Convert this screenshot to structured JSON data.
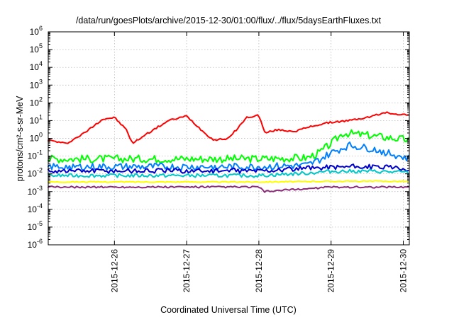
{
  "chart_data": {
    "type": "line",
    "title": "/data/run/goesPlots/archive/2015-12-30/01:00/flux/../flux/5daysEarthFluxes.txt",
    "xlabel": "Coordinated Universal Time (UTC)",
    "ylabel": "protons/cm²-s-sr-MeV",
    "yscale": "log",
    "ylim": [
      1e-06,
      1000000.0
    ],
    "xlim": [
      "2015-12-25T02:00",
      "2015-12-30T02:00"
    ],
    "grid": true,
    "legend": "none",
    "x_ticks": [
      "2015-12-26",
      "2015-12-27",
      "2015-12-28",
      "2015-12-29",
      "2015-12-30"
    ],
    "y_ticks": [
      {
        "base": "10",
        "exp": "-6",
        "value": 1e-06
      },
      {
        "base": "10",
        "exp": "-5",
        "value": 1e-05
      },
      {
        "base": "10",
        "exp": "-4",
        "value": 0.0001
      },
      {
        "base": "10",
        "exp": "-3",
        "value": 0.001
      },
      {
        "base": "10",
        "exp": "-2",
        "value": 0.01
      },
      {
        "base": "10",
        "exp": "-1",
        "value": 0.1
      },
      {
        "base": "10",
        "exp": "0",
        "value": 1
      },
      {
        "base": "10",
        "exp": "1",
        "value": 10
      },
      {
        "base": "10",
        "exp": "2",
        "value": 100
      },
      {
        "base": "10",
        "exp": "3",
        "value": 1000
      },
      {
        "base": "10",
        "exp": "4",
        "value": 10000
      },
      {
        "base": "10",
        "exp": "5",
        "value": 100000
      },
      {
        "base": "10",
        "exp": "6",
        "value": 1000000
      }
    ],
    "series": [
      {
        "color": "#ff0000",
        "x": [
          "2015-12-25T02:00",
          "2015-12-25T08:00",
          "2015-12-25T14:00",
          "2015-12-25T20:00",
          "2015-12-26T00:00",
          "2015-12-26T04:00",
          "2015-12-26T06:00",
          "2015-12-26T10:00",
          "2015-12-26T18:00",
          "2015-12-27T00:00",
          "2015-12-27T06:00",
          "2015-12-27T09:00",
          "2015-12-27T14:00",
          "2015-12-27T20:00",
          "2015-12-28T00:00",
          "2015-12-28T02:00",
          "2015-12-28T06:00",
          "2015-12-28T12:00",
          "2015-12-28T18:00",
          "2015-12-29T00:00",
          "2015-12-29T06:00",
          "2015-12-29T12:00",
          "2015-12-29T18:00",
          "2015-12-30T02:00"
        ],
        "y": [
          0.8,
          0.5,
          2,
          12,
          15,
          3,
          0.5,
          1.5,
          10,
          18,
          2,
          0.8,
          1,
          15,
          20,
          2,
          3,
          2.5,
          5,
          8,
          10,
          15,
          28,
          20
        ]
      },
      {
        "color": "#00ff00",
        "x": [
          "2015-12-25T02:00",
          "2015-12-26T00:00",
          "2015-12-27T00:00",
          "2015-12-28T00:00",
          "2015-12-28T16:00",
          "2015-12-28T20:00",
          "2015-12-29T00:00",
          "2015-12-29T04:00",
          "2015-12-29T12:00",
          "2015-12-30T02:00"
        ],
        "y": [
          0.07,
          0.07,
          0.07,
          0.07,
          0.08,
          0.15,
          0.5,
          2,
          1.5,
          0.8
        ]
      },
      {
        "color": "#0080ff",
        "x": [
          "2015-12-25T02:00",
          "2015-12-26T00:00",
          "2015-12-27T00:00",
          "2015-12-28T00:00",
          "2015-12-28T16:00",
          "2015-12-28T20:00",
          "2015-12-29T00:00",
          "2015-12-29T06:00",
          "2015-12-29T14:00",
          "2015-12-30T02:00"
        ],
        "y": [
          0.025,
          0.025,
          0.025,
          0.025,
          0.03,
          0.06,
          0.15,
          0.4,
          0.25,
          0.07
        ]
      },
      {
        "color": "#0000cc",
        "x": [
          "2015-12-25T02:00",
          "2015-12-26T00:00",
          "2015-12-27T00:00",
          "2015-12-28T00:00",
          "2015-12-28T16:00",
          "2015-12-29T00:00",
          "2015-12-29T12:00",
          "2015-12-30T02:00"
        ],
        "y": [
          0.015,
          0.015,
          0.015,
          0.015,
          0.02,
          0.025,
          0.025,
          0.02
        ]
      },
      {
        "color": "#00c8c8",
        "x": [
          "2015-12-25T02:00",
          "2015-12-26T00:00",
          "2015-12-27T00:00",
          "2015-12-28T00:00",
          "2015-12-28T16:00",
          "2015-12-29T00:00",
          "2015-12-29T12:00",
          "2015-12-30T02:00"
        ],
        "y": [
          0.008,
          0.008,
          0.008,
          0.008,
          0.011,
          0.014,
          0.014,
          0.012
        ]
      },
      {
        "color": "#ffff00",
        "x": [
          "2015-12-25T02:00",
          "2015-12-26T00:00",
          "2015-12-27T00:00",
          "2015-12-28T00:00",
          "2015-12-29T00:00",
          "2015-12-30T02:00"
        ],
        "y": [
          0.0035,
          0.0035,
          0.0035,
          0.0035,
          0.0038,
          0.0038
        ]
      },
      {
        "color": "#8b2a78",
        "x": [
          "2015-12-25T02:00",
          "2015-12-26T00:00",
          "2015-12-27T00:00",
          "2015-12-28T00:00",
          "2015-12-28T02:00",
          "2015-12-29T00:00",
          "2015-12-30T02:00"
        ],
        "y": [
          0.0018,
          0.0018,
          0.0018,
          0.0018,
          0.001,
          0.0018,
          0.0018
        ]
      }
    ]
  }
}
